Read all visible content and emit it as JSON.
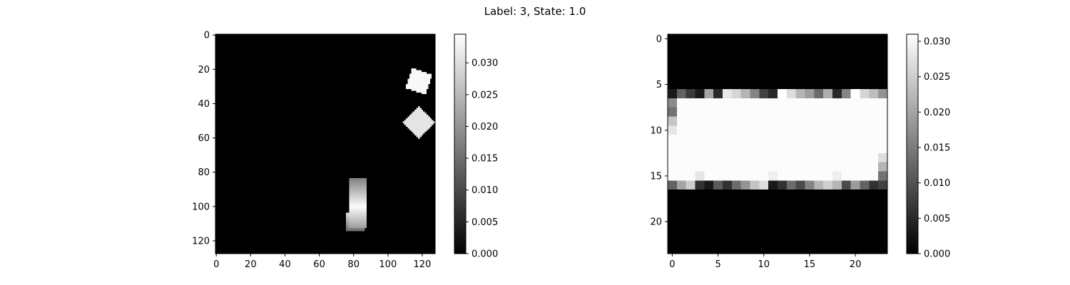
{
  "figure": {
    "title": "Label: 3, State: 1.0"
  },
  "chart_data": [
    {
      "type": "heatmap",
      "colormap": "gray",
      "grid": false,
      "image_shape": [
        128,
        128
      ],
      "xlim": [
        -0.5,
        127.5
      ],
      "ylim": [
        127.5,
        -0.5
      ],
      "x_ticks": [
        0,
        20,
        40,
        60,
        80,
        100,
        120
      ],
      "y_ticks": [
        0,
        20,
        40,
        60,
        80,
        100,
        120
      ],
      "colorbar": {
        "range": [
          0.0,
          0.0345
        ],
        "ticks": [
          0.0,
          0.005,
          0.01,
          0.015,
          0.02,
          0.025,
          0.03
        ],
        "tick_labels": [
          "0.000",
          "0.005",
          "0.010",
          "0.015",
          "0.020",
          "0.025",
          "0.030"
        ]
      },
      "background_value": 0.0,
      "features": [
        {
          "shape": "rotated-square",
          "center": [
            118,
            27
          ],
          "half_size": 6.2,
          "angle_deg": 20,
          "value": 0.0335
        },
        {
          "shape": "diamond",
          "center": [
            118,
            51
          ],
          "half_size": 6.6,
          "angle_deg": 45,
          "value": 0.031
        },
        {
          "shape": "vertical-bar",
          "x_range": [
            78,
            87
          ],
          "y_range": [
            84,
            112
          ],
          "peak_y": 100,
          "peak_value": 0.034,
          "edge_value": 0.018
        },
        {
          "shape": "vertical-bar",
          "x_range": [
            76,
            86
          ],
          "y_range": [
            104,
            114
          ],
          "peak_y": 104,
          "peak_value": 0.03,
          "edge_value": 0.015
        }
      ]
    },
    {
      "type": "heatmap",
      "colormap": "gray",
      "grid": false,
      "image_shape": [
        24,
        24
      ],
      "xlim": [
        -0.5,
        23.5
      ],
      "ylim": [
        23.5,
        -0.5
      ],
      "x_ticks": [
        0,
        5,
        10,
        15,
        20
      ],
      "y_ticks": [
        0,
        5,
        10,
        15,
        20
      ],
      "colorbar": {
        "range": [
          0.0,
          0.031
        ],
        "ticks": [
          0.0,
          0.005,
          0.01,
          0.015,
          0.02,
          0.025,
          0.03
        ],
        "tick_labels": [
          "0.000",
          "0.005",
          "0.010",
          "0.015",
          "0.020",
          "0.025",
          "0.030"
        ]
      },
      "background_value": 0.0,
      "fill_rows": [
        7,
        15
      ],
      "fill_value": 0.0306,
      "row_6_values": [
        0.003,
        0.012,
        0.007,
        0.003,
        0.02,
        0.005,
        0.028,
        0.026,
        0.022,
        0.016,
        0.008,
        0.005,
        0.031,
        0.027,
        0.022,
        0.019,
        0.013,
        0.021,
        0.005,
        0.016,
        0.031,
        0.026,
        0.023,
        0.018
      ],
      "row_16_values": [
        0.012,
        0.02,
        0.025,
        0.006,
        0.003,
        0.011,
        0.006,
        0.013,
        0.018,
        0.024,
        0.027,
        0.003,
        0.006,
        0.013,
        0.009,
        0.016,
        0.022,
        0.025,
        0.022,
        0.009,
        0.019,
        0.012,
        0.006,
        0.008
      ],
      "col_0_values": {
        "7": 0.017,
        "8": 0.014,
        "9": 0.024,
        "10": 0.028
      },
      "col_23_values": {
        "13": 0.027,
        "14": 0.022,
        "15": 0.014
      },
      "cell_overrides": {
        "15,3": 0.028,
        "15,11": 0.029,
        "15,18": 0.029
      }
    }
  ]
}
